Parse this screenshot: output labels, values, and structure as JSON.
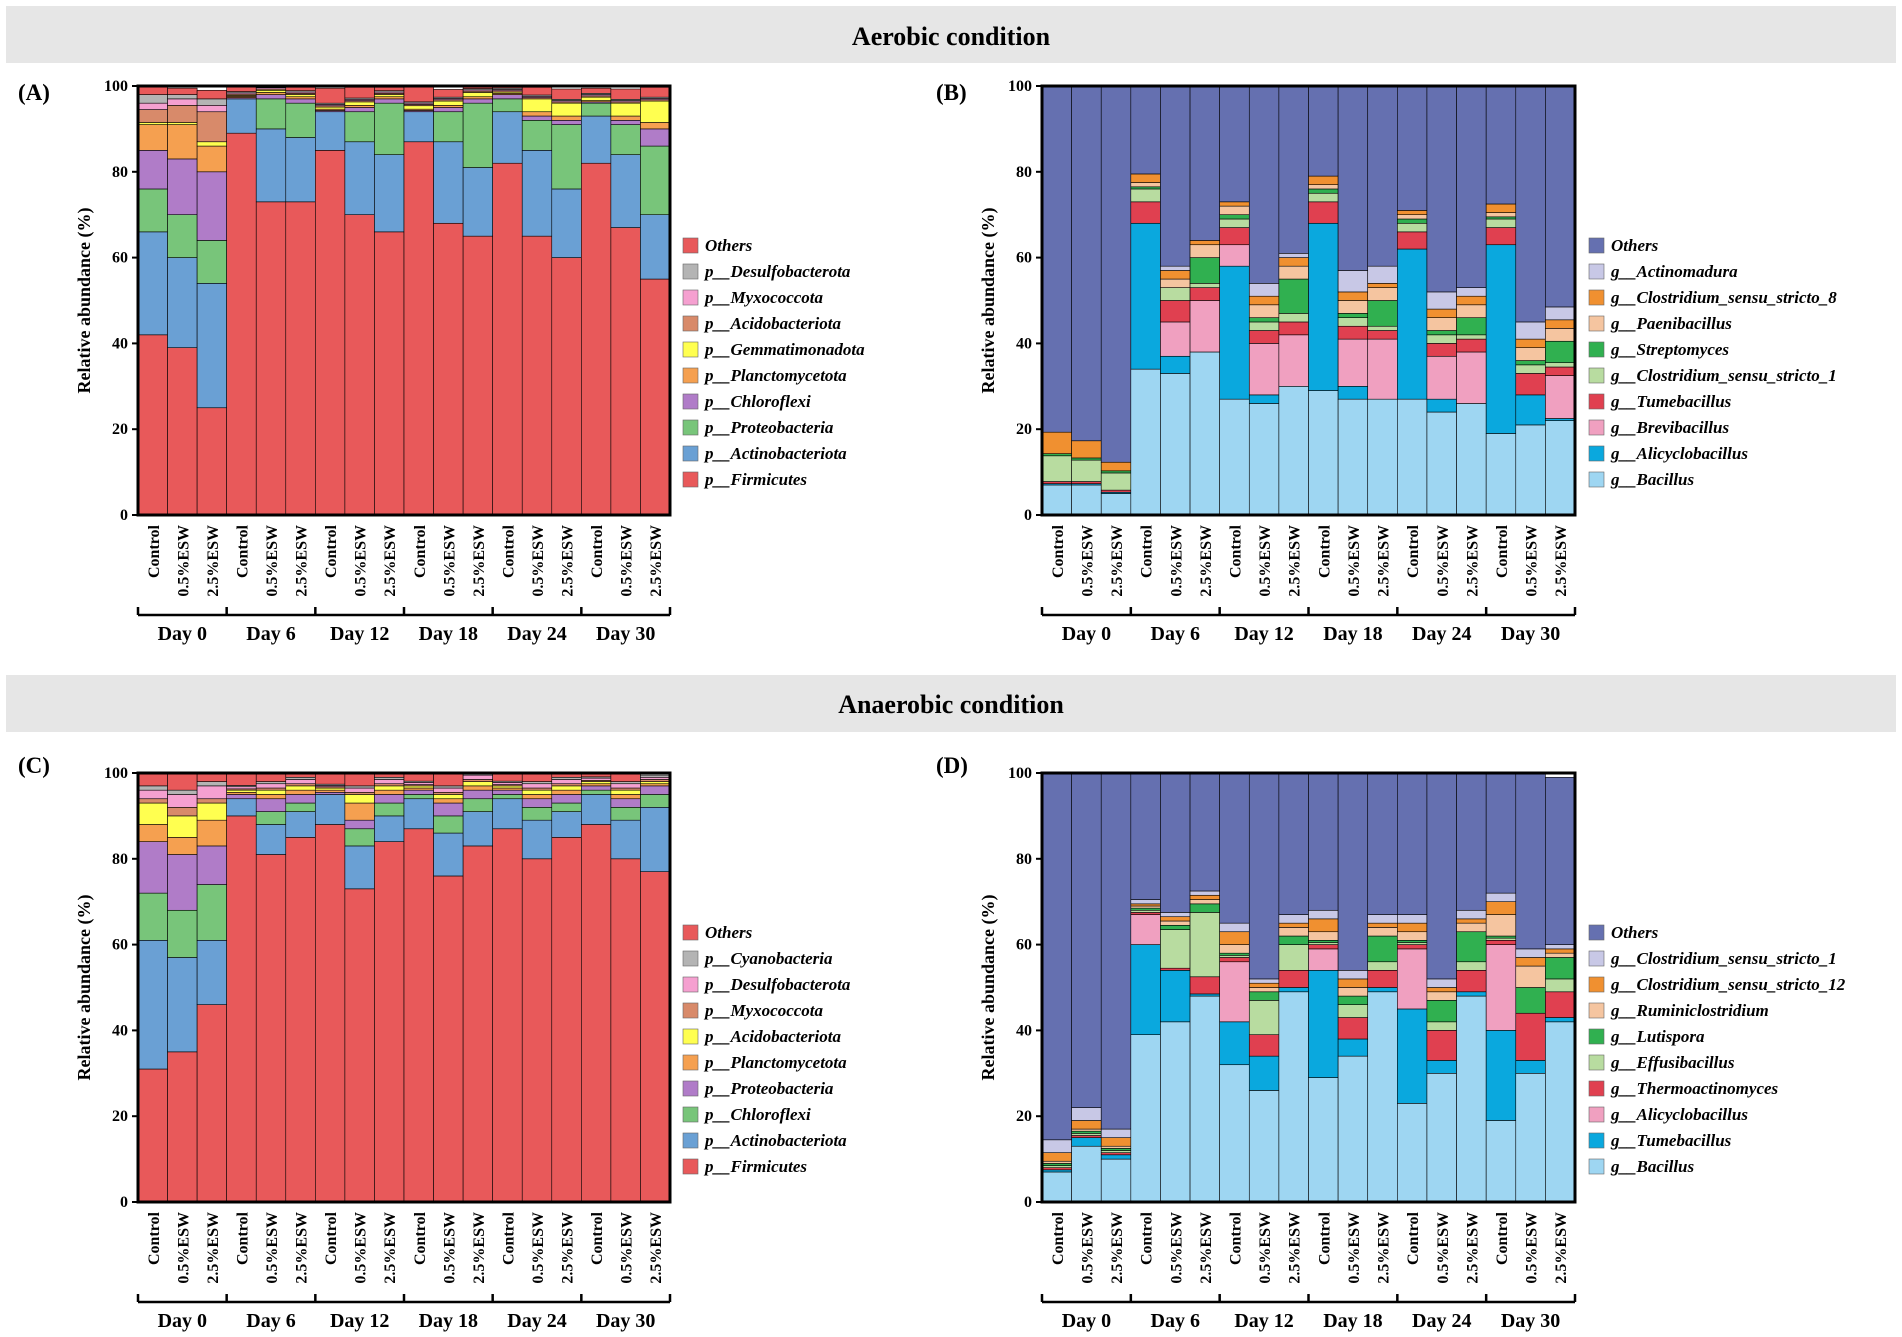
{
  "sections": [
    {
      "title": "Aerobic condition"
    },
    {
      "title": "Anaerobic condition"
    }
  ],
  "conditions": [
    "Control",
    "0.5%ESW",
    "2.5%ESW"
  ],
  "days": [
    "Day 0",
    "Day 6",
    "Day 12",
    "Day 18",
    "Day 24",
    "Day 30"
  ],
  "chart_data": [
    {
      "panel": "(A)",
      "type": "bar",
      "stacked": true,
      "ylabel": "Relative abundance (%)",
      "ylim": [
        0,
        100
      ],
      "yticks": [
        "0",
        "20",
        "40",
        "60",
        "80",
        "100"
      ],
      "legend_title": "Others",
      "series": [
        {
          "name": "p__Firmicutes",
          "color": "#e8595a",
          "values": [
            42,
            39,
            25,
            89,
            73,
            73,
            85,
            70,
            66,
            87,
            68,
            65,
            82,
            65,
            60,
            82,
            67,
            55
          ]
        },
        {
          "name": "p__Actinobacteriota",
          "color": "#6aa0d4",
          "values": [
            24,
            21,
            29,
            8,
            17,
            15,
            9,
            17,
            18,
            7,
            19,
            16,
            12,
            20,
            16,
            11,
            17,
            15
          ]
        },
        {
          "name": "p__Proteobacteria",
          "color": "#78c57a",
          "values": [
            10,
            10,
            10,
            0,
            7,
            8,
            0,
            7,
            12,
            0,
            7,
            15,
            3,
            7,
            15,
            3,
            7,
            16
          ]
        },
        {
          "name": "p__Chloroflexi",
          "color": "#b07cc8",
          "values": [
            9,
            13,
            16,
            0.3,
            1,
            1,
            0.3,
            1,
            1,
            0.3,
            1,
            1,
            1,
            1,
            1,
            0.3,
            1,
            4
          ]
        },
        {
          "name": "p__Planctomycetota",
          "color": "#f5a050",
          "values": [
            6,
            8,
            6,
            0.3,
            0.5,
            0.5,
            0.3,
            0.5,
            0.5,
            0.3,
            0.5,
            0.5,
            0.3,
            1,
            1,
            0.3,
            1,
            1.5
          ]
        },
        {
          "name": "p__Gemmatimonadota",
          "color": "#ffff50",
          "values": [
            0.5,
            0.5,
            1,
            0.2,
            0.5,
            0.5,
            0.5,
            0.8,
            0.5,
            0.8,
            1,
            1,
            0.3,
            3,
            3,
            0.8,
            3,
            5
          ]
        },
        {
          "name": "p__Acidobacteriota",
          "color": "#d88a6a",
          "values": [
            3,
            4,
            7,
            0.3,
            0.3,
            0.3,
            0.3,
            0.3,
            0.3,
            0.3,
            0.3,
            0.3,
            0.3,
            0.3,
            0.3,
            0.3,
            0.3,
            0.3
          ]
        },
        {
          "name": "p__Myxococcota",
          "color": "#f5a0d0",
          "values": [
            1.5,
            1.5,
            1.5,
            0.3,
            0.3,
            0.3,
            0.3,
            0.3,
            0.3,
            0.3,
            0.3,
            0.3,
            0.3,
            0.3,
            0.3,
            0.3,
            0.3,
            0.3
          ]
        },
        {
          "name": "p__Desulfobacterota",
          "color": "#b4b4b4",
          "values": [
            2,
            1,
            1.5,
            0.3,
            0.3,
            0.3,
            0.3,
            0.3,
            0.3,
            0.3,
            0.3,
            0.3,
            0.3,
            0.3,
            0.3,
            0.3,
            0.3,
            0.3
          ]
        },
        {
          "name": "Others",
          "color": "#e8595a",
          "values": [
            2,
            1.5,
            2,
            1.2,
            0.8,
            0.8,
            3.5,
            2.5,
            0.8,
            3.5,
            1.8,
            0.4,
            0.8,
            1.8,
            2.4,
            1.2,
            2.4,
            2.3
          ]
        }
      ]
    },
    {
      "panel": "(B)",
      "type": "bar",
      "stacked": true,
      "ylabel": "Relative abundance (%)",
      "ylim": [
        0,
        100
      ],
      "yticks": [
        "0",
        "20",
        "40",
        "60",
        "80",
        "100"
      ],
      "legend_title": "Others",
      "series": [
        {
          "name": "g__Bacillus",
          "color": "#9ed6f2",
          "values": [
            7,
            7,
            5,
            34,
            33,
            38,
            27,
            26,
            30,
            29,
            27,
            27,
            27,
            24,
            26,
            19,
            21,
            22
          ]
        },
        {
          "name": "g__Alicyclobacillus",
          "color": "#0aa8de",
          "values": [
            0.3,
            0.3,
            0.3,
            34,
            4,
            0,
            31,
            2,
            0,
            39,
            3,
            0,
            35,
            3,
            0,
            44,
            7,
            0.5
          ]
        },
        {
          "name": "g__Brevibacillus",
          "color": "#f0a0c0",
          "values": [
            0,
            0,
            0,
            0,
            8,
            12,
            5,
            12,
            12,
            0,
            11,
            14,
            0,
            10,
            12,
            0,
            0,
            10
          ]
        },
        {
          "name": "g__Tumebacillus",
          "color": "#e04050",
          "values": [
            0.5,
            0.5,
            0.5,
            5,
            5,
            3,
            4,
            3,
            3,
            5,
            3,
            2,
            4,
            3,
            3,
            4,
            5,
            2
          ]
        },
        {
          "name": "g__Clostridium_sensu_stricto_1",
          "color": "#b8dca0",
          "values": [
            6,
            5,
            4,
            3,
            3,
            1,
            2,
            2,
            2,
            2,
            2,
            1,
            2,
            2,
            1,
            2,
            2,
            1
          ]
        },
        {
          "name": "g__Streptomyces",
          "color": "#30b050",
          "values": [
            0.5,
            0.5,
            0.5,
            0.5,
            0,
            6,
            1,
            1,
            8,
            1,
            1,
            6,
            1,
            1,
            4,
            0.5,
            1,
            5
          ]
        },
        {
          "name": "g__Paenibacillus",
          "color": "#f5c5a0",
          "values": [
            0,
            0,
            0,
            1,
            2,
            3,
            2,
            3,
            3,
            1,
            3,
            3,
            1,
            3,
            3,
            1,
            3,
            3
          ]
        },
        {
          "name": "g__Clostridium_sensu_stricto_8",
          "color": "#f09030",
          "values": [
            5,
            4,
            2,
            2,
            2,
            1,
            1,
            2,
            2,
            2,
            2,
            1,
            1,
            2,
            2,
            2,
            2,
            2
          ]
        },
        {
          "name": "g__Actinomadura",
          "color": "#c8c8e6",
          "values": [
            0,
            0,
            0,
            0,
            1,
            0,
            0,
            3,
            1,
            0,
            5,
            4,
            0,
            4,
            2,
            0,
            4,
            3
          ]
        },
        {
          "name": "Others",
          "color": "#6570b0",
          "values": [
            80.7,
            82.7,
            87.7,
            20.5,
            42,
            36,
            27,
            46,
            39,
            21,
            43,
            42,
            29,
            48,
            47,
            27.5,
            55,
            52.5
          ]
        }
      ]
    },
    {
      "panel": "(C)",
      "type": "bar",
      "stacked": true,
      "ylabel": "Relative abundance (%)",
      "ylim": [
        0,
        100
      ],
      "yticks": [
        "0",
        "20",
        "40",
        "60",
        "80",
        "100"
      ],
      "legend_title": "Others",
      "series": [
        {
          "name": "p__Firmicutes",
          "color": "#e8595a",
          "values": [
            31,
            35,
            46,
            90,
            81,
            85,
            88,
            73,
            84,
            87,
            76,
            83,
            87,
            80,
            85,
            88,
            80,
            77
          ]
        },
        {
          "name": "p__Actinobacteriota",
          "color": "#6aa0d4",
          "values": [
            30,
            22,
            15,
            4,
            7,
            6,
            7,
            10,
            6,
            7,
            10,
            8,
            7,
            9,
            6,
            7,
            9,
            15
          ]
        },
        {
          "name": "p__Chloroflexi",
          "color": "#78c57a",
          "values": [
            11,
            11,
            13,
            0,
            3,
            2,
            0,
            4,
            3,
            1,
            4,
            3,
            1,
            3,
            2,
            1,
            3,
            3
          ]
        },
        {
          "name": "p__Proteobacteria",
          "color": "#b07cc8",
          "values": [
            12,
            13,
            9,
            1,
            3,
            2,
            0.5,
            2,
            2,
            1,
            3,
            2,
            1,
            2,
            2,
            1,
            2,
            2
          ]
        },
        {
          "name": "p__Planctomycetota",
          "color": "#f5a050",
          "values": [
            4,
            4,
            6,
            0.5,
            1,
            1,
            0.5,
            4,
            1,
            0.5,
            1,
            1,
            0.5,
            1,
            1,
            0.5,
            1,
            0.5
          ]
        },
        {
          "name": "p__Acidobacteriota",
          "color": "#ffff50",
          "values": [
            5,
            5,
            4,
            0.5,
            1,
            1,
            0.5,
            2,
            1,
            0.5,
            1,
            1,
            0.5,
            1,
            1,
            0.5,
            1,
            0.5
          ]
        },
        {
          "name": "p__Myxococcota",
          "color": "#d88a6a",
          "values": [
            1,
            2,
            1,
            0.3,
            0.5,
            0.5,
            0.3,
            0.5,
            0.5,
            0.3,
            0.5,
            0.5,
            0.3,
            0.5,
            0.5,
            0.3,
            0.5,
            0.5
          ]
        },
        {
          "name": "p__Desulfobacterota",
          "color": "#f5a0d0",
          "values": [
            2,
            3,
            3,
            0.5,
            1,
            1,
            0.3,
            1,
            1,
            0.5,
            1,
            1,
            0.5,
            1,
            1,
            0.5,
            1,
            0.5
          ]
        },
        {
          "name": "p__Cyanobacteria",
          "color": "#b4b4b4",
          "values": [
            1,
            1,
            1,
            0.3,
            0.5,
            0.5,
            0.3,
            0.5,
            0.5,
            0.3,
            0.5,
            0.5,
            0.3,
            0.5,
            0.5,
            0.3,
            0.5,
            0.5
          ]
        },
        {
          "name": "Others",
          "color": "#e8595a",
          "values": [
            3,
            4,
            2,
            2.9,
            2,
            1,
            2.6,
            3,
            1,
            1.9,
            3,
            0,
            1.9,
            2,
            1,
            0.9,
            2,
            0
          ]
        }
      ]
    },
    {
      "panel": "(D)",
      "type": "bar",
      "stacked": true,
      "ylabel": "Relative abundance (%)",
      "ylim": [
        0,
        100
      ],
      "yticks": [
        "0",
        "20",
        "40",
        "60",
        "80",
        "100"
      ],
      "legend_title": "Others",
      "series": [
        {
          "name": "g__Bacillus",
          "color": "#9ed6f2",
          "values": [
            7,
            13,
            10,
            39,
            42,
            48,
            32,
            26,
            49,
            29,
            34,
            49,
            23,
            30,
            48,
            19,
            30,
            42
          ]
        },
        {
          "name": "g__Tumebacillus",
          "color": "#0aa8de",
          "values": [
            0.5,
            2,
            1,
            21,
            12,
            0.5,
            10,
            8,
            1,
            25,
            4,
            1,
            22,
            3,
            1,
            21,
            3,
            1
          ]
        },
        {
          "name": "g__Alicyclobacillus",
          "color": "#f0a0c0",
          "values": [
            0,
            0,
            0,
            7,
            0,
            0,
            14,
            0,
            0,
            5,
            0,
            0,
            14,
            0,
            0,
            20,
            0,
            0
          ]
        },
        {
          "name": "g__Thermoactinomyces",
          "color": "#e04050",
          "values": [
            0.5,
            0.5,
            0.5,
            0.5,
            0.5,
            4,
            1,
            5,
            4,
            1,
            5,
            4,
            1,
            7,
            5,
            1,
            11,
            6
          ]
        },
        {
          "name": "g__Effusibacillus",
          "color": "#b8dca0",
          "values": [
            0.5,
            0.5,
            0.5,
            0.5,
            9,
            15,
            0.5,
            8,
            6,
            0.5,
            3,
            2,
            0.5,
            2,
            2,
            0.5,
            0,
            3
          ]
        },
        {
          "name": "g__Lutispora",
          "color": "#30b050",
          "values": [
            0.5,
            0.5,
            0.5,
            0.5,
            1,
            2,
            0.5,
            2,
            2,
            0.5,
            2,
            6,
            0.5,
            5,
            7,
            0.5,
            6,
            5
          ]
        },
        {
          "name": "g__Ruminiclostridium",
          "color": "#f5c5a0",
          "values": [
            0.5,
            0.5,
            0.5,
            0.5,
            1,
            1,
            2,
            1,
            2,
            2,
            2,
            2,
            2,
            2,
            2,
            5,
            5,
            1
          ]
        },
        {
          "name": "g__Clostridium_sensu_stricto_12",
          "color": "#f09030",
          "values": [
            2,
            2,
            2,
            0.5,
            1,
            1,
            3,
            1,
            1,
            3,
            2,
            1,
            2,
            1,
            1,
            3,
            2,
            1
          ]
        },
        {
          "name": "g__Clostridium_sensu_stricto_1",
          "color": "#c8c8e6",
          "values": [
            3,
            3,
            2,
            1,
            1,
            1,
            2,
            1,
            2,
            2,
            2,
            2,
            2,
            2,
            2,
            2,
            2,
            1
          ]
        },
        {
          "name": "Others",
          "color": "#6570b0",
          "values": [
            85.5,
            78,
            83,
            29.5,
            32.5,
            27.5,
            35,
            48,
            33,
            32,
            46,
            33,
            33,
            48,
            32,
            28,
            41,
            39
          ]
        }
      ]
    }
  ]
}
